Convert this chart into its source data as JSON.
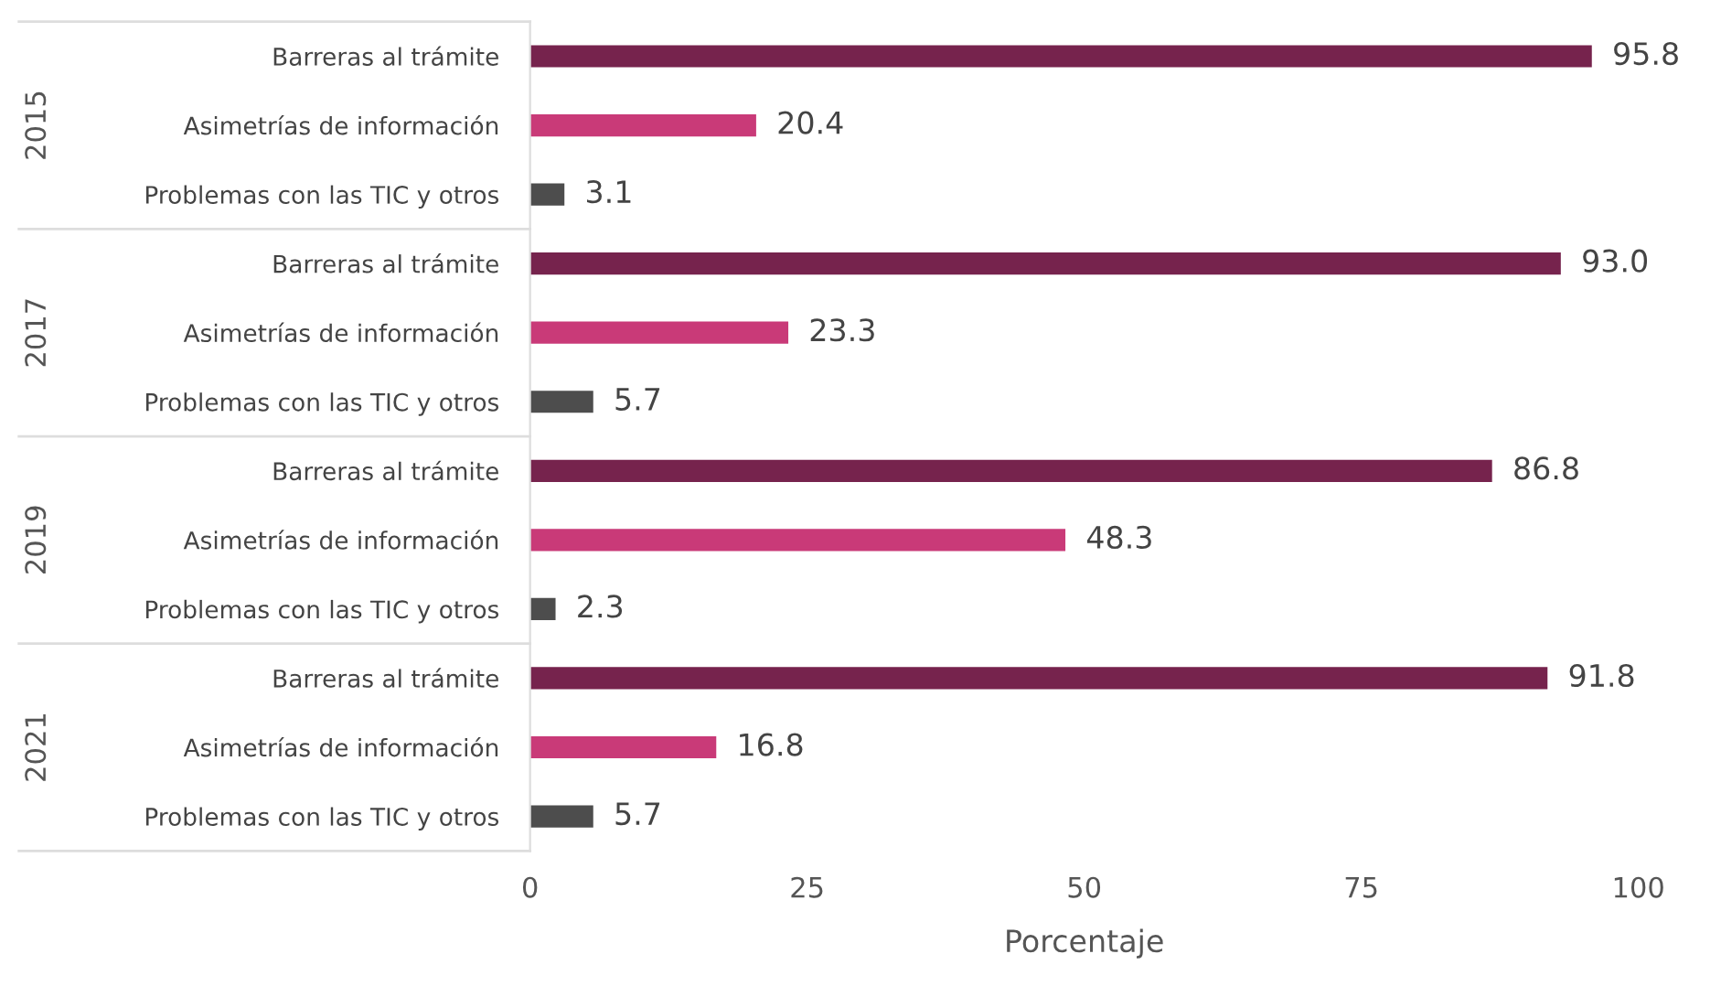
{
  "chart_data": {
    "type": "bar",
    "orientation": "horizontal",
    "xlabel": "Porcentaje",
    "categories": [
      "Barreras al trámite",
      "Asimetrías de información",
      "Problemas con las TIC y otros",
      "Barreras al trámite",
      "Asimetrías de información",
      "Problemas con las TIC y otros",
      "Barreras al trámite",
      "Asimetrías de información",
      "Problemas con las TIC y otros",
      "Barreras al trámite",
      "Asimetrías de información",
      "Problemas con las TIC y otros"
    ],
    "values": [
      95.8,
      20.4,
      3.1,
      93.0,
      23.3,
      5.7,
      86.8,
      48.3,
      2.3,
      91.8,
      16.8,
      5.7
    ],
    "value_labels": [
      "95.8",
      "20.4",
      "3.1",
      "93.0",
      "23.3",
      "5.7",
      "86.8",
      "48.3",
      "2.3",
      "91.8",
      "16.8",
      "5.7"
    ],
    "colors": [
      "#76234d",
      "#c93a78",
      "#4d4d4d",
      "#76234d",
      "#c93a78",
      "#4d4d4d",
      "#76234d",
      "#c93a78",
      "#4d4d4d",
      "#76234d",
      "#c93a78",
      "#4d4d4d"
    ],
    "annotations": [
      "2015",
      "2017",
      "2019",
      "2021"
    ],
    "xlim": [
      0,
      100
    ],
    "xticks": [
      0,
      25,
      50,
      75,
      100
    ],
    "grid": false,
    "legend": false
  }
}
